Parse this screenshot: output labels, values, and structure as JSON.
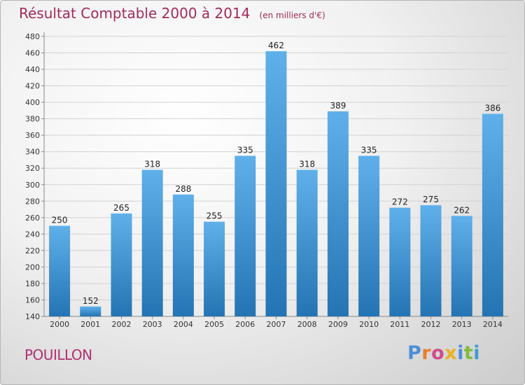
{
  "chart_data": {
    "type": "bar",
    "title": "Résultat Comptable 2000 à 2014",
    "subtitle": "(en milliers d'€)",
    "categories": [
      "2000",
      "2001",
      "2002",
      "2003",
      "2004",
      "2005",
      "2006",
      "2007",
      "2008",
      "2009",
      "2010",
      "2011",
      "2012",
      "2013",
      "2014"
    ],
    "values": [
      250,
      152,
      265,
      318,
      288,
      255,
      335,
      462,
      318,
      389,
      335,
      272,
      275,
      262,
      386
    ],
    "ylim": [
      140,
      480
    ],
    "ytick_step": 20,
    "grid": true,
    "xlabel": "",
    "ylabel": ""
  },
  "footer": {
    "town": "POUILLON",
    "logo_text": "Proxiti"
  },
  "colors": {
    "title": "#a32a5a",
    "bar_top": "#5fb0ea",
    "bar_bottom": "#2474b3",
    "logo_letters": [
      "#4d8fd6",
      "#e87e2a",
      "#d24a8c",
      "#e8b21e",
      "#4d8fd6",
      "#7cbd3c",
      "#3f9ad3"
    ]
  }
}
